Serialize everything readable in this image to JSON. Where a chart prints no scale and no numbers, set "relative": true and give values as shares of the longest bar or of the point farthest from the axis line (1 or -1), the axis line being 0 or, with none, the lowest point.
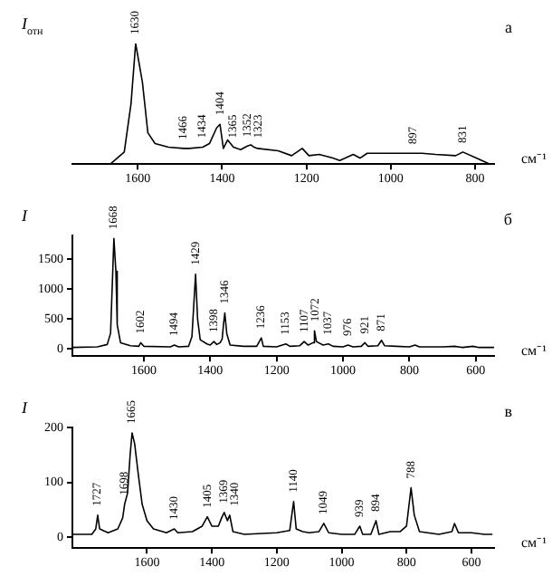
{
  "chart_data": [
    {
      "type": "line",
      "ylabel": "I$_{отн}$",
      "xlabel": "см⁻¹",
      "relative": true,
      "color": "#000000",
      "xlim": [
        1755,
        755
      ],
      "xticks": [
        1600,
        1400,
        1200,
        1000,
        800
      ],
      "x": [
        1665,
        1632,
        1616,
        1605,
        1589,
        1576,
        1559,
        1527,
        1491,
        1478,
        1446,
        1430,
        1413,
        1405,
        1397,
        1387,
        1373,
        1356,
        1340,
        1332,
        1324,
        1316,
        1267,
        1235,
        1210,
        1194,
        1170,
        1137,
        1121,
        1089,
        1073,
        1056,
        991,
        946,
        926,
        894,
        846,
        829,
        797,
        765
      ],
      "values": [
        0,
        0.1,
        0.5,
        1,
        0.68,
        0.26,
        0.17,
        0.14,
        0.13,
        0.13,
        0.14,
        0.17,
        0.3,
        0.33,
        0.13,
        0.2,
        0.14,
        0.12,
        0.15,
        0.16,
        0.14,
        0.13,
        0.11,
        0.07,
        0.13,
        0.07,
        0.08,
        0.05,
        0.03,
        0.08,
        0.05,
        0.09,
        0.09,
        0.09,
        0.09,
        0.08,
        0.07,
        0.1,
        0.05,
        0
      ],
      "annotations": [
        "а",
        {
          "text": "1630",
          "x": 1605,
          "y": 1
        },
        {
          "text": "1466",
          "x": 1491,
          "y": 0.13
        },
        {
          "text": "1434",
          "x": 1446,
          "y": 0.14
        },
        {
          "text": "1404",
          "x": 1405,
          "y": 0.33
        },
        {
          "text": "1365",
          "x": 1373,
          "y": 0.14
        },
        {
          "text": "1352",
          "x": 1340,
          "y": 0.15
        },
        {
          "text": "1323",
          "x": 1324,
          "y": 0.14
        },
        {
          "text": "897",
          "x": 946,
          "y": 0.09
        },
        {
          "text": "831",
          "x": 829,
          "y": 0.1
        }
      ]
    },
    {
      "type": "line",
      "ylabel": "I",
      "xlabel": "см⁻¹",
      "color": "#000000",
      "xlim": [
        1815,
        545
      ],
      "xticks": [
        1600,
        1400,
        1200,
        1000,
        800,
        600
      ],
      "ylim": [
        -125,
        1900
      ],
      "yticks": [
        0,
        500,
        1000,
        1500
      ],
      "x": [
        1815,
        1740,
        1710,
        1700,
        1690,
        1684,
        1680,
        1670,
        1640,
        1615,
        1609,
        1600,
        1520,
        1508,
        1495,
        1465,
        1455,
        1444,
        1438,
        1430,
        1410,
        1400,
        1389,
        1380,
        1370,
        1364,
        1360,
        1356,
        1350,
        1340,
        1300,
        1260,
        1246,
        1240,
        1200,
        1172,
        1160,
        1130,
        1117,
        1105,
        1090,
        1086,
        1080,
        1060,
        1044,
        1030,
        1000,
        985,
        970,
        945,
        934,
        925,
        895,
        884,
        875,
        840,
        800,
        783,
        770,
        700,
        664,
        640,
        609,
        590,
        545
      ],
      "values": [
        20,
        30,
        70,
        260,
        1850,
        1300,
        400,
        100,
        50,
        40,
        100,
        40,
        30,
        60,
        30,
        40,
        200,
        1250,
        500,
        150,
        80,
        60,
        120,
        70,
        100,
        160,
        400,
        600,
        250,
        60,
        40,
        40,
        180,
        40,
        30,
        80,
        40,
        50,
        120,
        60,
        100,
        300,
        120,
        60,
        80,
        40,
        30,
        60,
        30,
        40,
        100,
        40,
        50,
        140,
        50,
        40,
        30,
        60,
        30,
        30,
        40,
        20,
        40,
        20,
        20
      ],
      "annotations": [
        "б",
        {
          "text": "1668",
          "x": 1690,
          "y": 1850
        },
        {
          "text": "1602",
          "x": 1609,
          "y": 100
        },
        {
          "text": "1494",
          "x": 1508,
          "y": 60
        },
        {
          "text": "1429",
          "x": 1444,
          "y": 1250
        },
        {
          "text": "1398",
          "x": 1389,
          "y": 120
        },
        {
          "text": "1346",
          "x": 1356,
          "y": 600
        },
        {
          "text": "1236",
          "x": 1246,
          "y": 180
        },
        {
          "text": "1153",
          "x": 1172,
          "y": 80
        },
        {
          "text": "1107",
          "x": 1117,
          "y": 120
        },
        {
          "text": "1072",
          "x": 1086,
          "y": 300
        },
        {
          "text": "1037",
          "x": 1044,
          "y": 80
        },
        {
          "text": "976",
          "x": 985,
          "y": 60
        },
        {
          "text": "921",
          "x": 934,
          "y": 100
        },
        {
          "text": "871",
          "x": 884,
          "y": 140
        }
      ]
    },
    {
      "type": "line",
      "ylabel": "I",
      "xlabel": "см⁻¹",
      "color": "#000000",
      "xlim": [
        1830,
        530
      ],
      "xticks": [
        1600,
        1400,
        1200,
        1000,
        800,
        600
      ],
      "ylim": [
        -20,
        200
      ],
      "yticks": [
        0,
        100,
        200
      ],
      "x": [
        1830,
        1770,
        1758,
        1752,
        1746,
        1720,
        1690,
        1675,
        1669,
        1660,
        1652,
        1646,
        1638,
        1628,
        1615,
        1600,
        1580,
        1540,
        1516,
        1505,
        1460,
        1430,
        1414,
        1400,
        1380,
        1370,
        1362,
        1352,
        1345,
        1335,
        1300,
        1200,
        1160,
        1148,
        1140,
        1120,
        1100,
        1070,
        1055,
        1040,
        1000,
        960,
        944,
        935,
        910,
        894,
        885,
        850,
        820,
        800,
        786,
        776,
        760,
        700,
        660,
        652,
        640,
        600,
        560,
        535
      ],
      "values": [
        5,
        5,
        15,
        40,
        15,
        8,
        15,
        35,
        60,
        80,
        150,
        190,
        170,
        120,
        60,
        30,
        15,
        8,
        15,
        8,
        10,
        20,
        37,
        20,
        20,
        35,
        45,
        30,
        40,
        10,
        5,
        8,
        12,
        65,
        15,
        10,
        8,
        10,
        25,
        8,
        5,
        5,
        20,
        5,
        5,
        30,
        5,
        10,
        10,
        20,
        90,
        40,
        10,
        5,
        10,
        25,
        8,
        8,
        5,
        5
      ],
      "annotations": [
        "в",
        {
          "text": "1727",
          "x": 1752,
          "y": 40
        },
        {
          "text": "1698",
          "x": 1669,
          "y": 60
        },
        {
          "text": "1665",
          "x": 1646,
          "y": 190
        },
        {
          "text": "1430",
          "x": 1516,
          "y": 15
        },
        {
          "text": "1405",
          "x": 1414,
          "y": 37
        },
        {
          "text": "1369",
          "x": 1362,
          "y": 45
        },
        {
          "text": "1340",
          "x": 1345,
          "y": 40
        },
        {
          "text": "1140",
          "x": 1148,
          "y": 65
        },
        {
          "text": "1049",
          "x": 1055,
          "y": 25
        },
        {
          "text": "939",
          "x": 944,
          "y": 20
        },
        {
          "text": "894",
          "x": 894,
          "y": 30
        },
        {
          "text": "788",
          "x": 786,
          "y": 90
        }
      ]
    }
  ]
}
